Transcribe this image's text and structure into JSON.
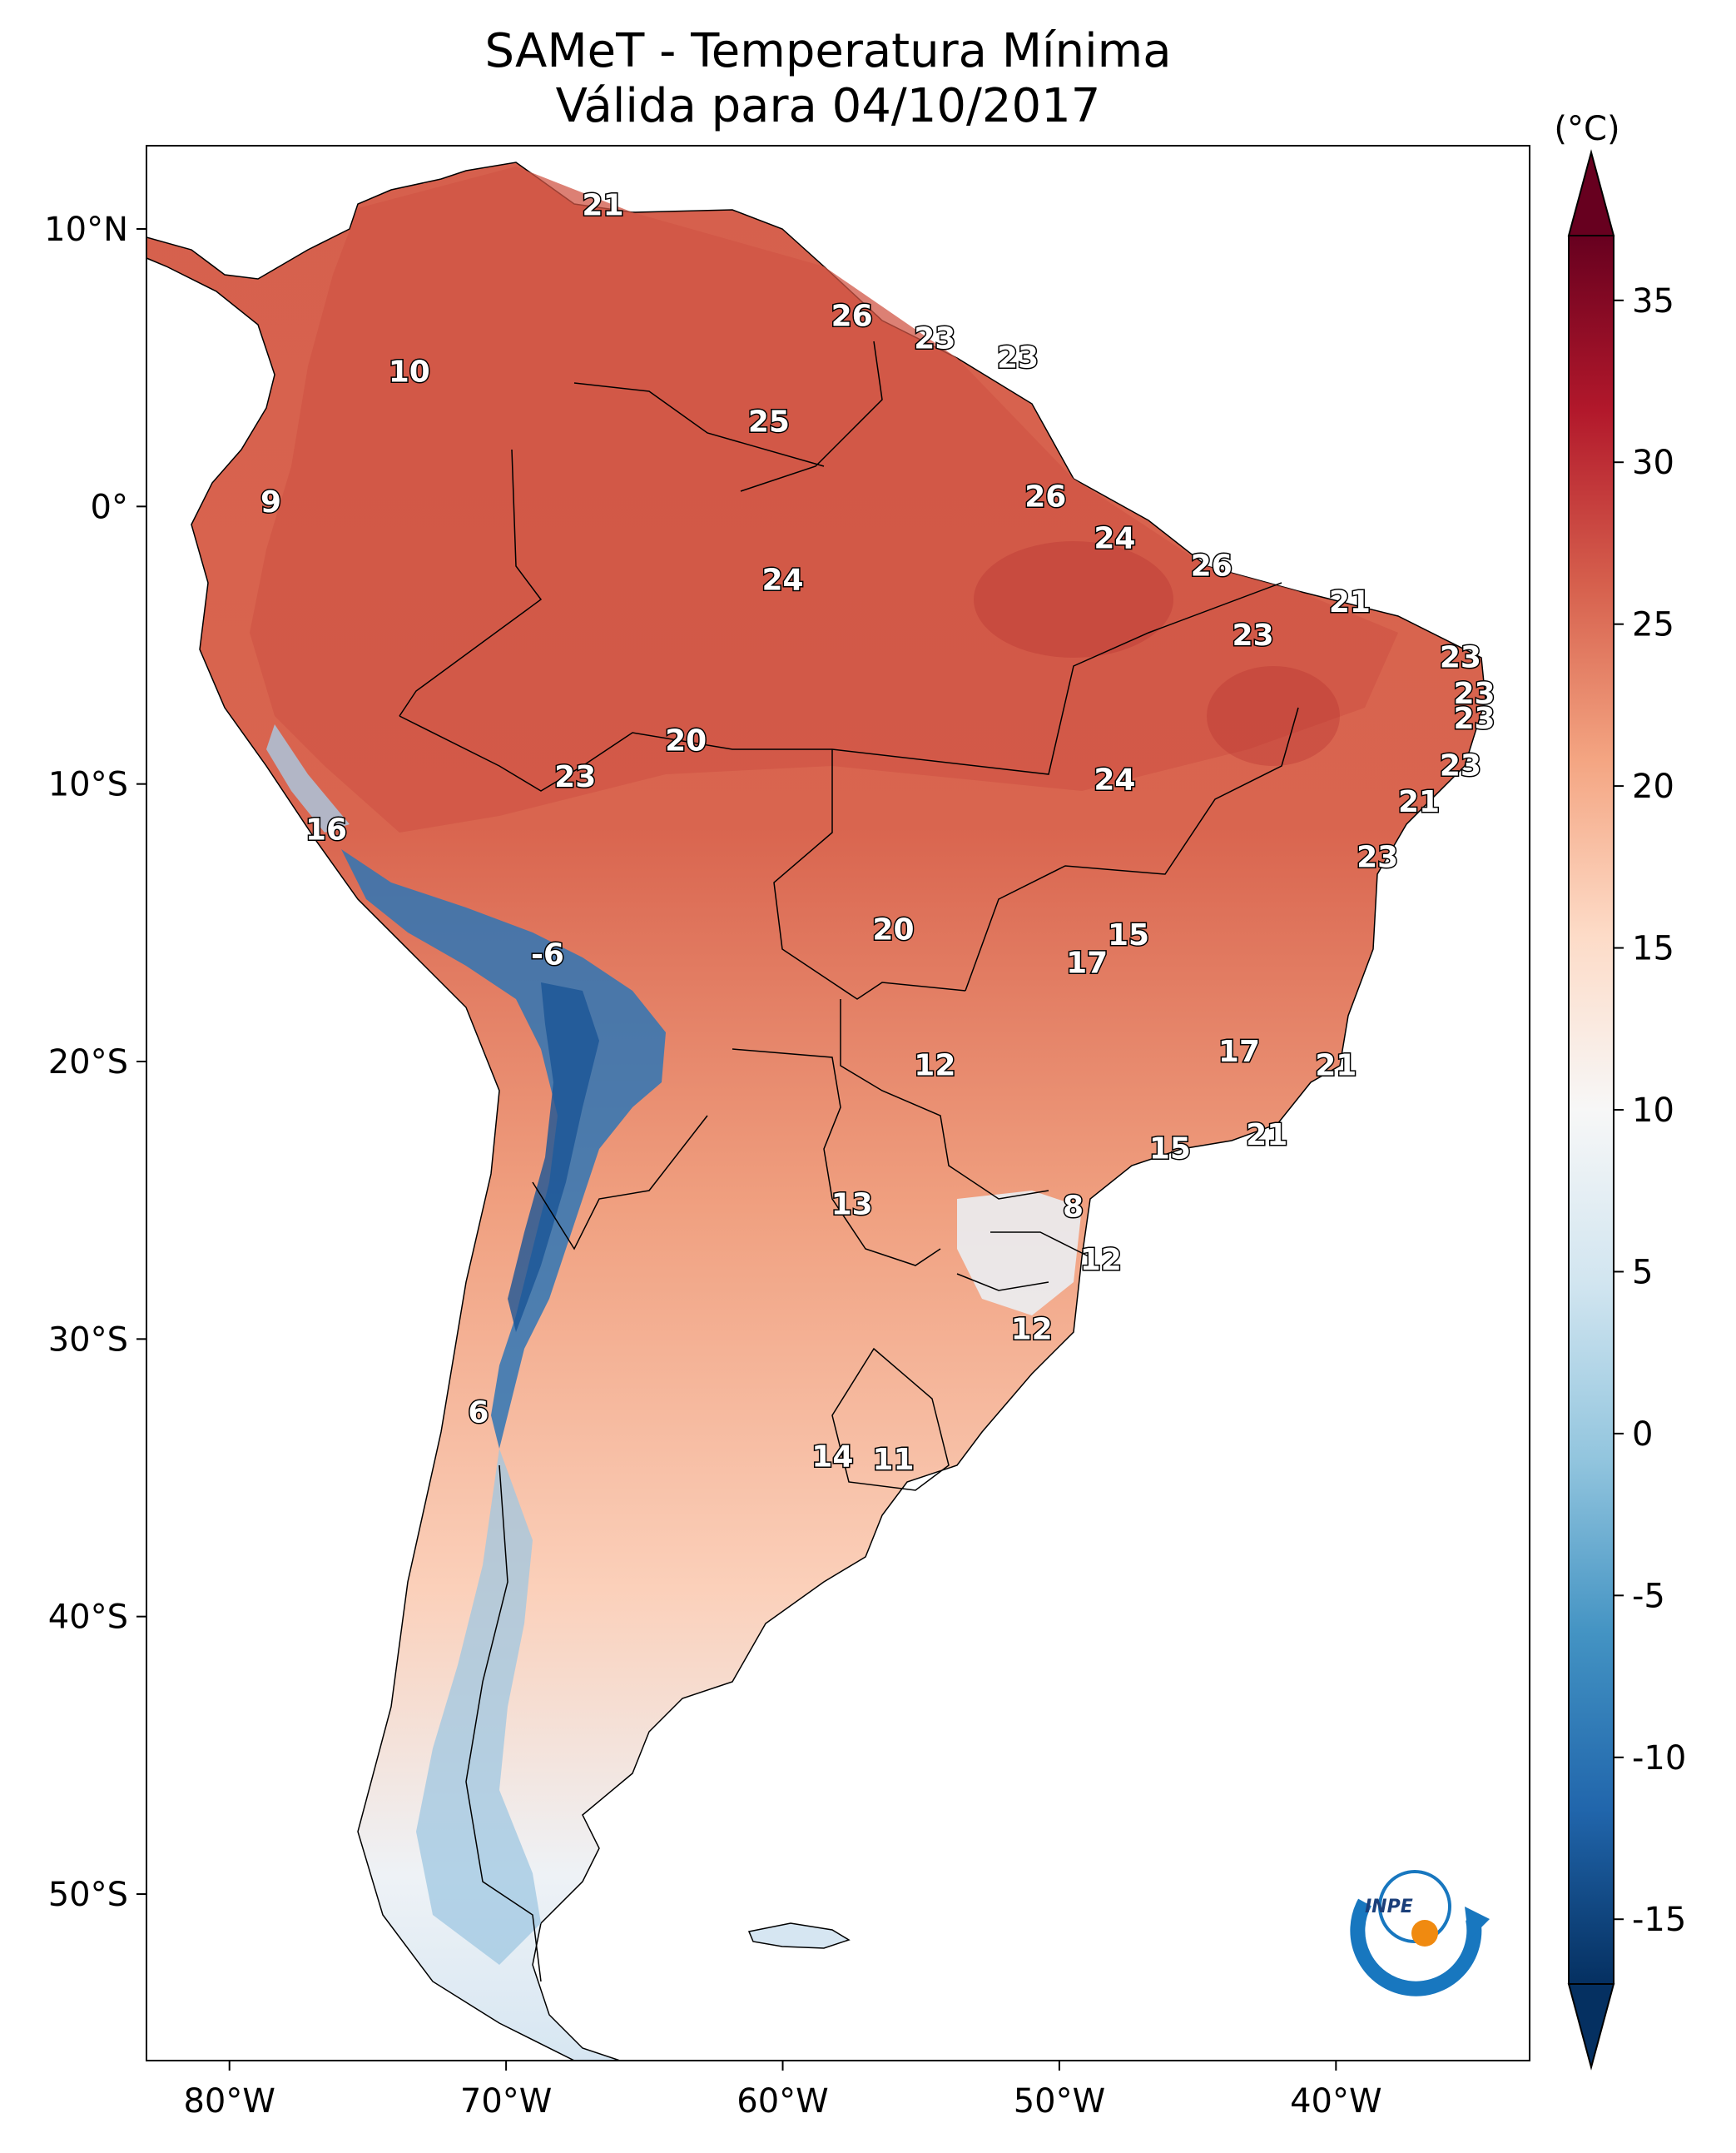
{
  "title": {
    "line1": "SAMeT - Temperatura Mínima",
    "line2": "Válida para 04/10/2017"
  },
  "map": {
    "lon_ticks": [
      "80°W",
      "70°W",
      "60°W",
      "50°W",
      "40°W"
    ],
    "lat_ticks": [
      "10°N",
      "0°",
      "10°S",
      "20°S",
      "30°S",
      "40°S",
      "50°S"
    ],
    "extent": {
      "lon": [
        -83,
        -33
      ],
      "lat": [
        -56,
        13
      ]
    },
    "point_labels": [
      {
        "text": "21",
        "lon": -66.5,
        "lat": 10.5
      },
      {
        "text": "10",
        "lon": -73.5,
        "lat": 4.5
      },
      {
        "text": "9",
        "lon": -78.5,
        "lat": -0.2
      },
      {
        "text": "26",
        "lon": -57.5,
        "lat": 6.5
      },
      {
        "text": "23",
        "lon": -54.5,
        "lat": 5.7
      },
      {
        "text": "23",
        "lon": -51.5,
        "lat": 5.0
      },
      {
        "text": "25",
        "lon": -60.5,
        "lat": 2.7
      },
      {
        "text": "26",
        "lon": -50.5,
        "lat": 0.0
      },
      {
        "text": "24",
        "lon": -48.0,
        "lat": -1.5
      },
      {
        "text": "24",
        "lon": -60.0,
        "lat": -3.0
      },
      {
        "text": "26",
        "lon": -44.5,
        "lat": -2.5
      },
      {
        "text": "21",
        "lon": -39.5,
        "lat": -3.8
      },
      {
        "text": "23",
        "lon": -43.0,
        "lat": -5.0
      },
      {
        "text": "23",
        "lon": -35.5,
        "lat": -5.8
      },
      {
        "text": "23",
        "lon": -35.0,
        "lat": -7.1
      },
      {
        "text": "23",
        "lon": -35.0,
        "lat": -8.0
      },
      {
        "text": "23",
        "lon": -35.5,
        "lat": -9.7
      },
      {
        "text": "21",
        "lon": -37.0,
        "lat": -11.0
      },
      {
        "text": "23",
        "lon": -38.5,
        "lat": -13.0
      },
      {
        "text": "24",
        "lon": -48.0,
        "lat": -10.2
      },
      {
        "text": "20",
        "lon": -63.5,
        "lat": -8.8
      },
      {
        "text": "23",
        "lon": -67.5,
        "lat": -10.1
      },
      {
        "text": "16",
        "lon": -76.5,
        "lat": -12.0
      },
      {
        "text": "-6",
        "lon": -68.5,
        "lat": -16.5
      },
      {
        "text": "20",
        "lon": -56.0,
        "lat": -15.6
      },
      {
        "text": "15",
        "lon": -47.5,
        "lat": -15.8
      },
      {
        "text": "17",
        "lon": -49.0,
        "lat": -16.8
      },
      {
        "text": "17",
        "lon": -43.5,
        "lat": -20.0
      },
      {
        "text": "21",
        "lon": -40.0,
        "lat": -20.5
      },
      {
        "text": "12",
        "lon": -54.5,
        "lat": -20.5
      },
      {
        "text": "21",
        "lon": -42.5,
        "lat": -23.0
      },
      {
        "text": "15",
        "lon": -46.0,
        "lat": -23.5
      },
      {
        "text": "13",
        "lon": -57.5,
        "lat": -25.5
      },
      {
        "text": "8",
        "lon": -49.5,
        "lat": -25.6
      },
      {
        "text": "12",
        "lon": -48.5,
        "lat": -27.5
      },
      {
        "text": "12",
        "lon": -51.0,
        "lat": -30.0
      },
      {
        "text": "6",
        "lon": -71.0,
        "lat": -33.0
      },
      {
        "text": "14",
        "lon": -58.2,
        "lat": -34.6
      },
      {
        "text": "11",
        "lon": -56.0,
        "lat": -34.7
      }
    ]
  },
  "colorbar": {
    "unit": "(°C)",
    "ticks": [
      "35",
      "30",
      "25",
      "20",
      "15",
      "10",
      "5",
      "0",
      "-5",
      "-10",
      "-15"
    ],
    "min": -17,
    "max": 37,
    "palette": "RdBu_r"
  },
  "logo": {
    "text": "INPE"
  },
  "colors": {
    "warm": "#d6604d",
    "hot": "#b2182b",
    "neutral": "#f7f7f7",
    "cold": "#4393c3",
    "coldest": "#053061"
  }
}
